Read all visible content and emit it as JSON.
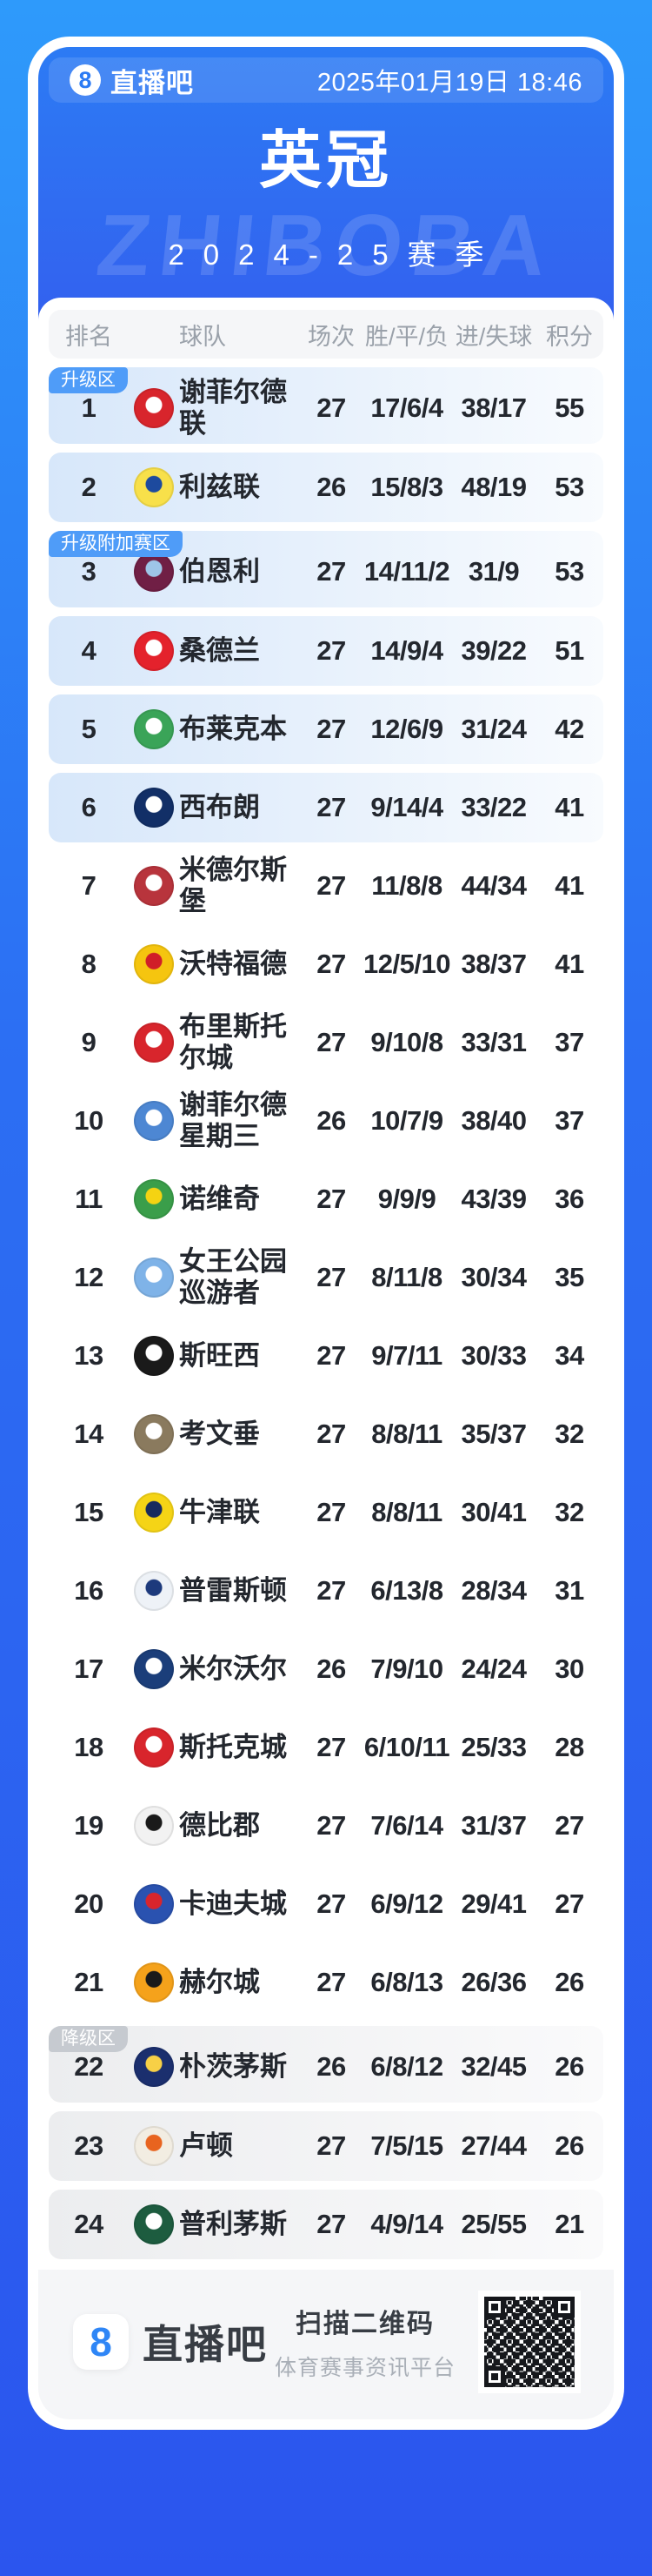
{
  "theme": {
    "bg_top": "#2E9AFB",
    "bg_bottom": "#2B55EE",
    "card_blue_top": "#2C7BF4",
    "card_blue_bottom": "#3361EF",
    "promo_badge": "#4F9CF8",
    "releg_badge": "#C6CAD0",
    "promo_row_left": "#D7E7FA",
    "releg_row_left": "#ECEDEF",
    "text_dark": "#23272E",
    "text_gray": "#9AA1AA"
  },
  "header": {
    "logo_glyph": "8",
    "app_name": "直播吧",
    "datetime": "2025年01月19日 18:46"
  },
  "hero": {
    "title": "英冠",
    "season": "2024-25赛季",
    "watermark": "ZHIBOBA"
  },
  "table": {
    "columns": [
      "排名",
      "球队",
      "场次",
      "胜/平/负",
      "进/失球",
      "积分"
    ],
    "zone_labels": {
      "promotion": "升级区",
      "playoff": "升级附加赛区",
      "relegation": "降级区"
    },
    "rows": [
      {
        "rank": 1,
        "team": "谢菲尔德联",
        "matches": 27,
        "wdl": "17/6/4",
        "goals": "38/17",
        "points": 55,
        "band": "blue",
        "badge": {
          "type": "promotion",
          "label": "升级区"
        },
        "crest": {
          "primary": "#D8252C",
          "secondary": "#FFFFFF"
        }
      },
      {
        "rank": 2,
        "team": "利兹联",
        "matches": 26,
        "wdl": "15/8/3",
        "goals": "48/19",
        "points": 53,
        "band": "blue",
        "crest": {
          "primary": "#F8E04A",
          "secondary": "#1D4A9E"
        }
      },
      {
        "rank": 3,
        "team": "伯恩利",
        "matches": 27,
        "wdl": "14/11/2",
        "goals": "31/9",
        "points": 53,
        "band": "blue",
        "badge": {
          "type": "playoff",
          "label": "升级附加赛区"
        },
        "crest": {
          "primary": "#701F45",
          "secondary": "#9EC6E8"
        }
      },
      {
        "rank": 4,
        "team": "桑德兰",
        "matches": 27,
        "wdl": "14/9/4",
        "goals": "39/22",
        "points": 51,
        "band": "blue",
        "crest": {
          "primary": "#E4222C",
          "secondary": "#FFFFFF"
        }
      },
      {
        "rank": 5,
        "team": "布莱克本",
        "matches": 27,
        "wdl": "12/6/9",
        "goals": "31/24",
        "points": 42,
        "band": "blue",
        "crest": {
          "primary": "#3AA458",
          "secondary": "#FFFFFF"
        }
      },
      {
        "rank": 6,
        "team": "西布朗",
        "matches": 27,
        "wdl": "9/14/4",
        "goals": "33/22",
        "points": 41,
        "band": "blue",
        "crest": {
          "primary": "#122F67",
          "secondary": "#FFFFFF"
        }
      },
      {
        "rank": 7,
        "team": "米德尔斯堡",
        "matches": 27,
        "wdl": "11/8/8",
        "goals": "44/34",
        "points": 41,
        "band": "none",
        "crest": {
          "primary": "#B8343C",
          "secondary": "#FFFFFF"
        }
      },
      {
        "rank": 8,
        "team": "沃特福德",
        "matches": 27,
        "wdl": "12/5/10",
        "goals": "38/37",
        "points": 41,
        "band": "none",
        "crest": {
          "primary": "#F5C50F",
          "secondary": "#D01E28"
        }
      },
      {
        "rank": 9,
        "team": "布里斯托尔城",
        "matches": 27,
        "wdl": "9/10/8",
        "goals": "33/31",
        "points": 37,
        "band": "none",
        "crest": {
          "primary": "#D8252C",
          "secondary": "#FFFFFF"
        }
      },
      {
        "rank": 10,
        "team": "谢菲尔德星期三",
        "matches": 26,
        "wdl": "10/7/9",
        "goals": "38/40",
        "points": 37,
        "band": "none",
        "crest": {
          "primary": "#4D87D3",
          "secondary": "#FFFFFF"
        }
      },
      {
        "rank": 11,
        "team": "诺维奇",
        "matches": 27,
        "wdl": "9/9/9",
        "goals": "43/39",
        "points": 36,
        "band": "none",
        "crest": {
          "primary": "#3A9E4A",
          "secondary": "#F4D312"
        }
      },
      {
        "rank": 12,
        "team": "女王公园巡游者",
        "matches": 27,
        "wdl": "8/11/8",
        "goals": "30/34",
        "points": 35,
        "band": "none",
        "crest": {
          "primary": "#7FB3E8",
          "secondary": "#FFFFFF"
        }
      },
      {
        "rank": 13,
        "team": "斯旺西",
        "matches": 27,
        "wdl": "9/7/11",
        "goals": "30/33",
        "points": 34,
        "band": "none",
        "crest": {
          "primary": "#1A1A1A",
          "secondary": "#FFFFFF"
        }
      },
      {
        "rank": 14,
        "team": "考文垂",
        "matches": 27,
        "wdl": "8/8/11",
        "goals": "35/37",
        "points": 32,
        "band": "none",
        "crest": {
          "primary": "#8A7A5E",
          "secondary": "#FFFFFF"
        }
      },
      {
        "rank": 15,
        "team": "牛津联",
        "matches": 27,
        "wdl": "8/8/11",
        "goals": "30/41",
        "points": 32,
        "band": "none",
        "crest": {
          "primary": "#F5D416",
          "secondary": "#172A5E"
        }
      },
      {
        "rank": 16,
        "team": "普雷斯顿",
        "matches": 27,
        "wdl": "6/13/8",
        "goals": "28/34",
        "points": 31,
        "band": "none",
        "crest": {
          "primary": "#EEF2F7",
          "secondary": "#1D3A7C"
        }
      },
      {
        "rank": 17,
        "team": "米尔沃尔",
        "matches": 26,
        "wdl": "7/9/10",
        "goals": "24/24",
        "points": 30,
        "band": "none",
        "crest": {
          "primary": "#1B3E7A",
          "secondary": "#FFFFFF"
        }
      },
      {
        "rank": 18,
        "team": "斯托克城",
        "matches": 27,
        "wdl": "6/10/11",
        "goals": "25/33",
        "points": 28,
        "band": "none",
        "crest": {
          "primary": "#D8252C",
          "secondary": "#FFFFFF"
        }
      },
      {
        "rank": 19,
        "team": "德比郡",
        "matches": 27,
        "wdl": "7/6/14",
        "goals": "31/37",
        "points": 27,
        "band": "none",
        "crest": {
          "primary": "#F2F2F2",
          "secondary": "#1A1A1A"
        }
      },
      {
        "rank": 20,
        "team": "卡迪夫城",
        "matches": 27,
        "wdl": "6/9/12",
        "goals": "29/41",
        "points": 27,
        "band": "none",
        "crest": {
          "primary": "#2A52B0",
          "secondary": "#D8252C"
        }
      },
      {
        "rank": 21,
        "team": "赫尔城",
        "matches": 27,
        "wdl": "6/8/13",
        "goals": "26/36",
        "points": 26,
        "band": "none",
        "crest": {
          "primary": "#F5A21B",
          "secondary": "#1A1A1A"
        }
      },
      {
        "rank": 22,
        "team": "朴茨茅斯",
        "matches": 26,
        "wdl": "6/8/12",
        "goals": "32/45",
        "points": 26,
        "band": "gray",
        "badge": {
          "type": "relegation",
          "label": "降级区"
        },
        "crest": {
          "primary": "#1B2F6E",
          "secondary": "#F7D046"
        }
      },
      {
        "rank": 23,
        "team": "卢顿",
        "matches": 27,
        "wdl": "7/5/15",
        "goals": "27/44",
        "points": 26,
        "band": "gray",
        "crest": {
          "primary": "#F2EDE2",
          "secondary": "#E8641F"
        }
      },
      {
        "rank": 24,
        "team": "普利茅斯",
        "matches": 27,
        "wdl": "4/9/14",
        "goals": "25/55",
        "points": 21,
        "band": "gray",
        "crest": {
          "primary": "#1D5C3F",
          "secondary": "#FFFFFF"
        }
      }
    ]
  },
  "footer": {
    "logo_glyph": "8",
    "app_name": "直播吧",
    "scan_text": "扫描二维码",
    "subtitle": "体育赛事资讯平台"
  }
}
